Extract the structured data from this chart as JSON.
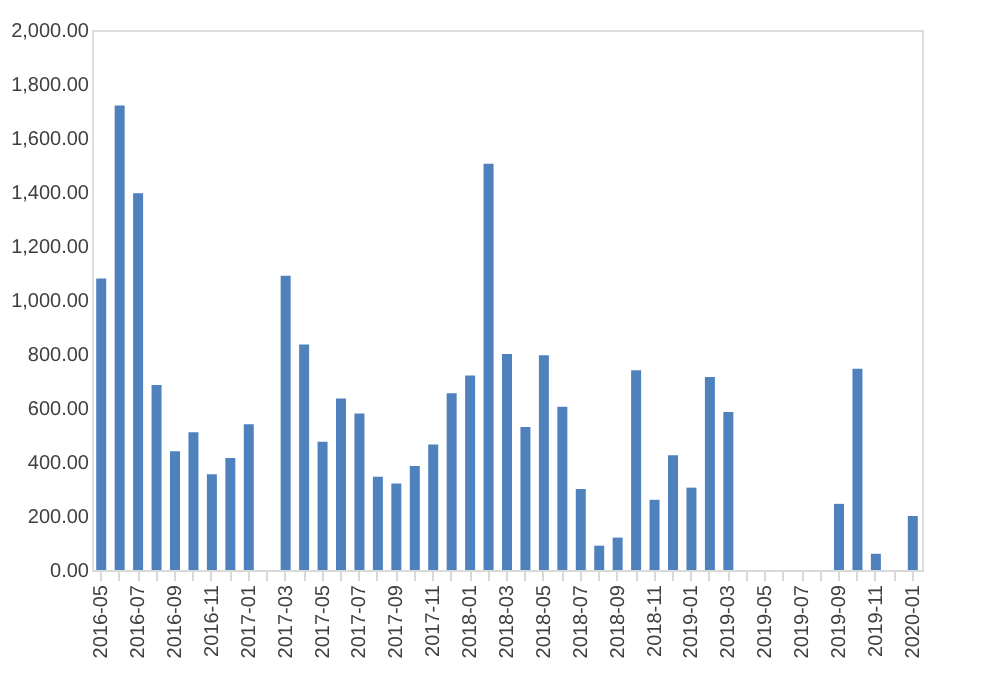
{
  "chart_data": {
    "type": "bar",
    "categories": [
      "2016-05",
      null,
      "2016-07",
      null,
      "2016-09",
      null,
      "2016-11",
      null,
      "2017-01",
      null,
      "2017-03",
      null,
      "2017-05",
      null,
      "2017-07",
      null,
      "2017-09",
      null,
      "2017-11",
      null,
      "2018-01",
      null,
      "2018-03",
      null,
      "2018-05",
      null,
      "2018-07",
      null,
      "2018-09",
      null,
      "2018-11",
      null,
      "2019-01",
      null,
      "2019-03",
      null,
      "2019-05",
      null,
      "2019-07",
      null,
      "2019-09",
      null,
      "2019-11",
      null,
      "2020-01"
    ],
    "values": [
      1080,
      1720,
      1395,
      685,
      440,
      510,
      355,
      415,
      540,
      null,
      1090,
      835,
      475,
      635,
      580,
      345,
      320,
      385,
      465,
      655,
      720,
      1505,
      800,
      530,
      795,
      605,
      300,
      90,
      120,
      740,
      260,
      425,
      305,
      715,
      585,
      null,
      null,
      null,
      null,
      null,
      245,
      745,
      60,
      null,
      200
    ],
    "color": "#4f81bd",
    "ylim": [
      0,
      2000
    ],
    "yticks": [
      {
        "value": 0,
        "label": "0.00"
      },
      {
        "value": 200,
        "label": "200.00"
      },
      {
        "value": 400,
        "label": "400.00"
      },
      {
        "value": 600,
        "label": "600.00"
      },
      {
        "value": 800,
        "label": "800.00"
      },
      {
        "value": 1000,
        "label": "1,000.00"
      },
      {
        "value": 1200,
        "label": "1,200.00"
      },
      {
        "value": 1400,
        "label": "1,400.00"
      },
      {
        "value": 1600,
        "label": "1,600.00"
      },
      {
        "value": 1800,
        "label": "1,800.00"
      },
      {
        "value": 2000,
        "label": "2,000.00"
      }
    ],
    "grid": false
  }
}
